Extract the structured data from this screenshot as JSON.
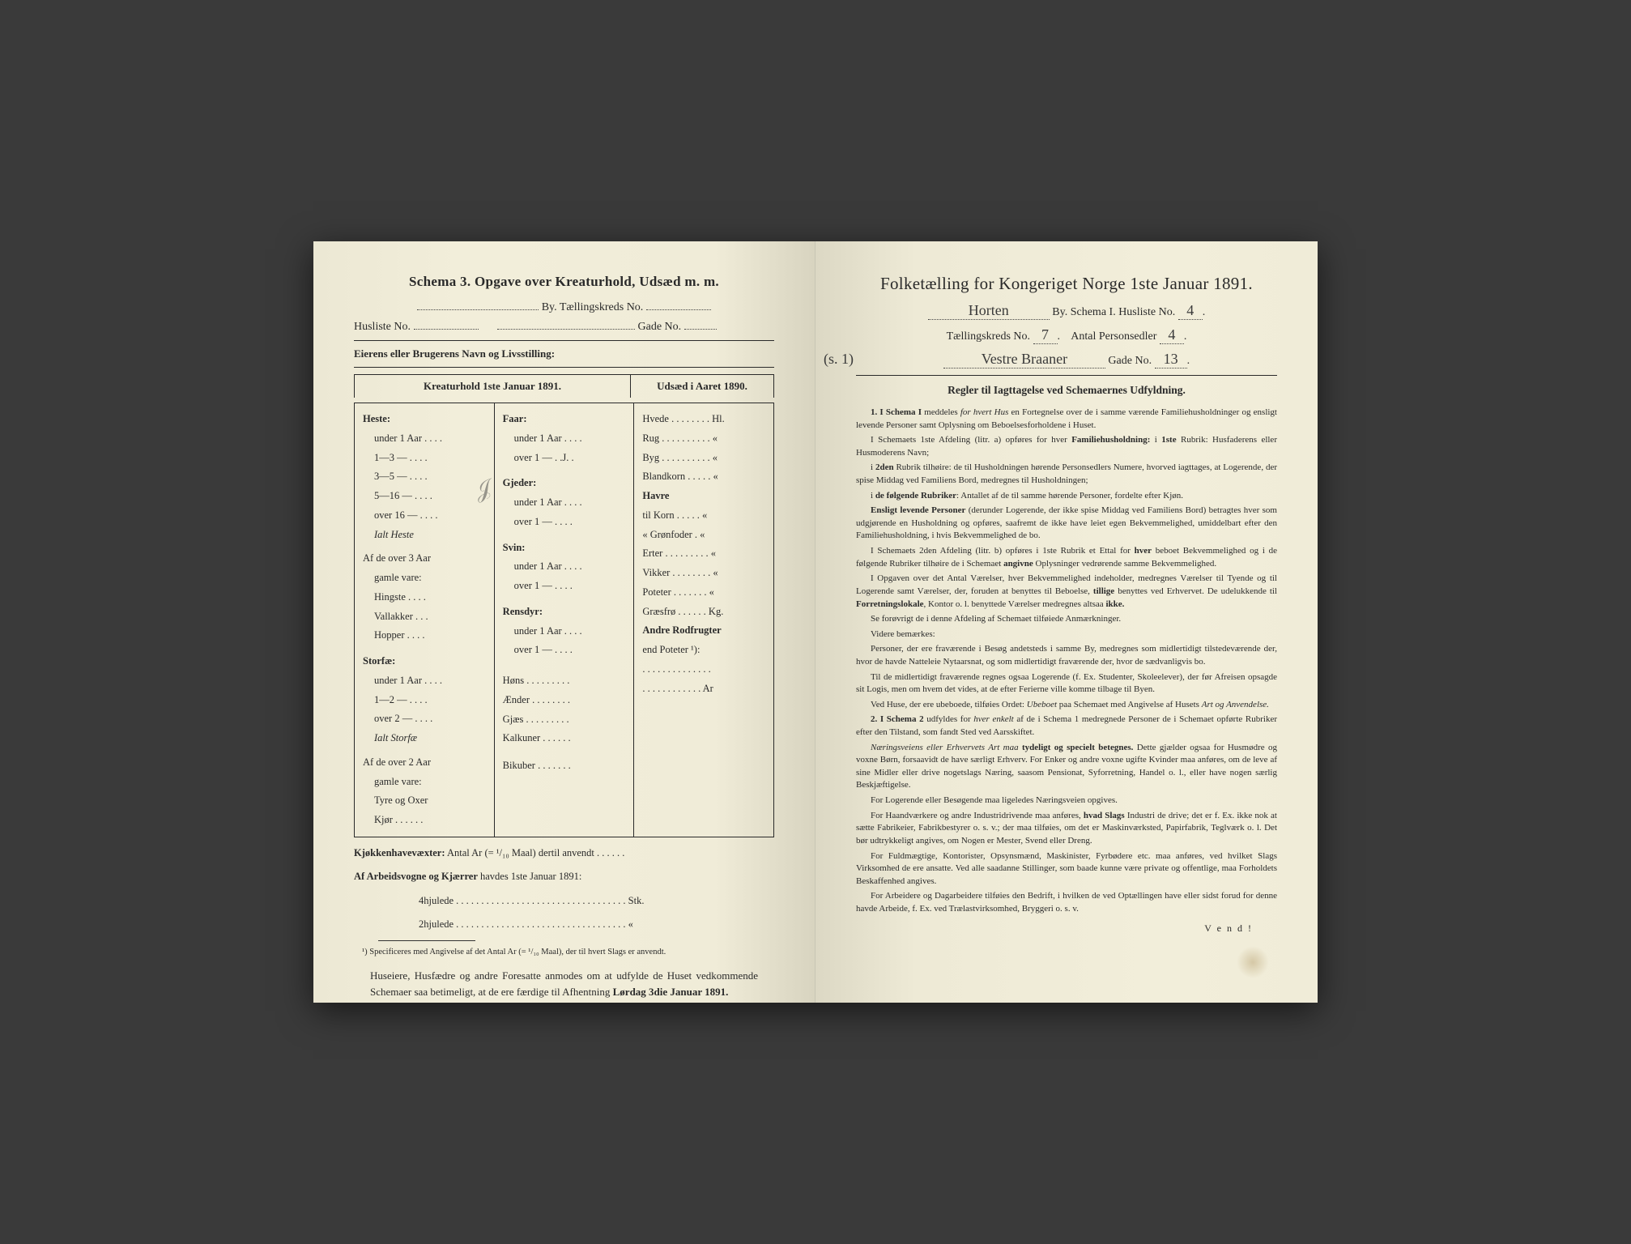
{
  "left": {
    "title": "Schema 3.  Opgave over Kreaturhold, Udsæd m. m.",
    "by_label": "By.  Tællingskreds No.",
    "husliste_label": "Husliste No.",
    "gade_label": "Gade No.",
    "owner_label": "Eierens eller Brugerens Navn og Livsstilling:",
    "col_header_left": "Kreaturhold 1ste Januar 1891.",
    "col_header_right": "Udsæd i Aaret 1890.",
    "heste_head": "Heste:",
    "heste_rows": [
      "under 1 Aar . . . .",
      "1—3  —  . . . .",
      "3—5  —  . . . .",
      "5—16 —  . . . .",
      "over 16 —  . . . ."
    ],
    "ialt_heste": "Ialt Heste",
    "af_over3": "Af de over 3 Aar",
    "gamle_vare": "gamle vare:",
    "hingste": "Hingste . . . .",
    "vallakker": "Vallakker . . .",
    "hopper": "Hopper . . . .",
    "storfae_head": "Storfæ:",
    "storfae_rows": [
      "under 1 Aar . . . .",
      "1—2  —  . . . .",
      "over 2  —  . . . ."
    ],
    "ialt_storfae": "Ialt Storfæ",
    "af_over2": "Af de over 2 Aar",
    "tyre": "Tyre og Oxer",
    "kjor": "Kjør . . . . . .",
    "faar_head": "Faar:",
    "faar_rows": [
      "under 1 Aar . . . .",
      "over 1  —  . .J. ."
    ],
    "gjeder_head": "Gjeder:",
    "gjeder_rows": [
      "under 1 Aar . . . .",
      "over 1  —  . . . ."
    ],
    "svin_head": "Svin:",
    "svin_rows": [
      "under 1 Aar . . . .",
      "over 1  —  . . . ."
    ],
    "rensdyr_head": "Rensdyr:",
    "rensdyr_rows": [
      "under 1 Aar . . . .",
      "over 1  —  . . . ."
    ],
    "hons": "Høns . . . . . . . . .",
    "aender": "Ænder . . . . . . . .",
    "gjaes": "Gjæs . . . . . . . . .",
    "kalkuner": "Kalkuner . . . . . .",
    "bikuber": "Bikuber . . . . . . .",
    "udsaed_rows": [
      "Hvede . . . . . . . . Hl.",
      "Rug . . . . . . . . . . «",
      "Byg . . . . . . . . . . «",
      "Blandkorn . . . . . «",
      "Havre",
      "   til Korn . . . . . «",
      "   « Grønfoder . «",
      "Erter . . . . . . . . . «",
      "Vikker . . . . . . . . «",
      "Poteter . . . . . . . «",
      "Græsfrø . . . . . . Kg.",
      "Andre Rodfrugter",
      "   end Poteter ¹):",
      ". . . . . . . . . . . . . .",
      ". . . . . . . . . . . . Ar"
    ],
    "kjokken_label": "Kjøkkenhavevæxter:",
    "kjokken_text": "Antal Ar (= ¹/₁₀ Maal) dertil anvendt . . . . . .",
    "arbeidsvogne_label": "Af Arbeidsvogne og Kjærrer",
    "arbeidsvogne_text": " havdes 1ste Januar 1891:",
    "hjul4": "4hjulede . . . . . . . . . . . . . . . . . . . . . . . . . . . . . . . . . . Stk.",
    "hjul2": "2hjulede . . . . . . . . . . . . . . . . . . . . . . . . . . . . . . . . . .  «",
    "footnote": "¹) Specificeres med Angivelse af det Antal Ar (= ¹/₁₀ Maal), der til hvert Slags er anvendt.",
    "closing": "Huseiere, Husfædre og andre Foresatte anmodes om at udfylde de Huset vedkommende Schemaer saa betimeligt, at de ere færdige til Afhentning ",
    "closing_bold": "Lørdag 3die Januar 1891."
  },
  "right": {
    "title": "Folketælling for Kongeriget Norge 1ste Januar 1891.",
    "handwritten_by": "Horten",
    "by_label": "By.  Schema I.  Husliste No.",
    "husliste_val": "4",
    "tk_label": "Tællingskreds No.",
    "tk_val": "7",
    "ap_label": "Antal Personsedler",
    "ap_val": "4",
    "handwritten_street": "Vestre Braaner",
    "gade_label": "Gade No.",
    "gade_val": "13",
    "side_note": "(s. 1)",
    "rules_header": "Regler til Iagttagelse ved Schemaernes Udfyldning.",
    "rules": [
      {
        "n": "1.",
        "text": "<span class='bold'>I Schema I</span> meddeles <span class='italic'>for hvert Hus</span> en Fortegnelse over de i samme værende Familiehusholdninger og ensligt levende Personer samt Oplysning om Beboelsesforholdene i Huset."
      },
      {
        "text": "I Schemaets 1ste Afdeling (litr. a) opføres for hver <span class='bold'>Familiehusholdning:</span> i <span class='bold'>1ste</span> Rubrik: Husfaderens eller Husmoderens Navn;"
      },
      {
        "text": "i <span class='bold'>2den</span> Rubrik tilhøire: de til Husholdningen hørende Personsedlers Numere, hvorved iagttages, at Logerende, der spise Middag ved Familiens Bord, medregnes til Husholdningen;"
      },
      {
        "text": "i <span class='bold'>de følgende Rubriker</span>: Antallet af de til samme hørende Personer, fordelte efter Kjøn."
      },
      {
        "text": "<span class='bold'>Ensligt levende Personer</span> (derunder Logerende, der ikke spise Middag ved Familiens Bord) betragtes hver som udgjørende en Husholdning og opføres, saafremt de ikke have leiet egen Bekvemmelighed, umiddelbart efter den Familiehusholdning, i hvis Bekvemmelighed de bo."
      },
      {
        "text": "I Schemaets 2den Afdeling (litr. b) opføres i 1ste Rubrik et Ettal for <span class='bold'>hver</span> beboet Bekvemmelighed og i de følgende Rubriker tilhøire de i Schemaet <span class='bold'>angivne</span> Oplysninger vedrørende samme Bekvemmelighed."
      },
      {
        "text": "I Opgaven over det Antal Værelser, hver Bekvemmelighed indeholder, medregnes Værelser til Tyende og til Logerende samt Værelser, der, foruden at benyttes til Beboelse, <span class='bold'>tillige</span> benyttes ved Erhvervet. De udelukkende til <span class='bold'>Forretningslokale</span>, Kontor o. l. benyttede Værelser medregnes altsaa <span class='bold'>ikke.</span>"
      },
      {
        "text": "Se forøvrigt de i denne Afdeling af Schemaet tilføiede Anmærkninger."
      },
      {
        "text": "Videre bemærkes:"
      },
      {
        "text": "Personer, der ere fraværende i Besøg andetsteds i samme By, medregnes som midlertidigt tilstedeværende der, hvor de havde Natteleie Nytaarsnat, og som midlertidigt fraværende der, hvor de sædvanligvis bo."
      },
      {
        "text": "Til de midlertidigt fraværende regnes ogsaa Logerende (f. Ex. Studenter, Skoleelever), der før Afreisen opsagde sit Logis, men om hvem det vides, at de efter Ferierne ville komme tilbage til Byen."
      },
      {
        "text": "Ved Huse, der ere ubeboede, tilføies Ordet: <span class='italic'>Ubeboet</span> paa Schemaet med Angivelse af Husets <span class='italic'>Art og Anvendelse.</span>"
      },
      {
        "n": "2.",
        "text": "<span class='bold'>I Schema 2</span> udfyldes for <span class='italic'>hver enkelt</span> af de i Schema 1 medregnede Personer de i Schemaet opførte Rubriker efter den Tilstand, som fandt Sted ved Aarsskiftet."
      },
      {
        "text": "<span class='italic'>Næringsveiens eller Erhvervets Art maa</span> <span class='bold'>tydeligt og specielt betegnes.</span> Dette gjælder ogsaa for Husmødre og voxne Børn, forsaavidt de have særligt Erhverv. For Enker og andre voxne ugifte Kvinder maa anføres, om de leve af sine Midler eller drive nogetslags Næring, saasom Pensionat, Syforretning, Handel o. l., eller have nogen særlig Beskjæftigelse."
      },
      {
        "text": "For Logerende eller Besøgende maa ligeledes Næringsveien opgives."
      },
      {
        "text": "For Haandværkere og andre Industridrivende maa anføres, <span class='bold'>hvad Slags</span> Industri de drive; det er f. Ex. ikke nok at sætte Fabrikeier, Fabrikbestyrer o. s. v.; der maa tilføies, om det er Maskinværksted, Papirfabrik, Teglværk o. l.   Det bør udtrykkeligt angives, om Nogen er Mester, Svend eller Dreng."
      },
      {
        "text": "For Fuldmægtige, Kontorister, Opsynsmænd, Maskinister, Fyrbødere etc. maa anføres, ved hvilket Slags Virksomhed de ere ansatte.  Ved alle saadanne Stillinger, som baade kunne være private og offentlige, maa Forholdets Beskaffenhed angives."
      },
      {
        "text": "For Arbeidere og Dagarbeidere tilføies den Bedrift, i hvilken de ved Optællingen have eller sidst forud for denne havde Arbeide, f. Ex. ved Trælastvirksomhed, Bryggeri o. s. v."
      }
    ],
    "vend": "V e n d !"
  }
}
